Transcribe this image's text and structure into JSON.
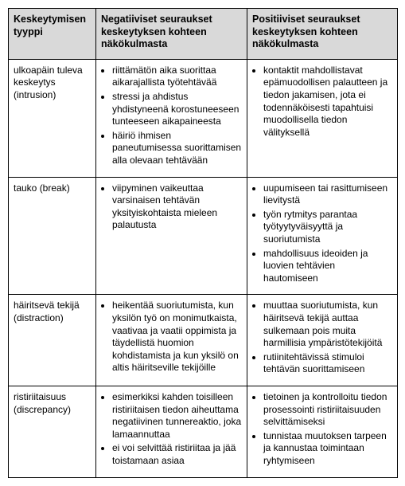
{
  "table": {
    "headers": {
      "col1": "Keskeytymisen tyyppi",
      "col2": "Negatiiviset seuraukset keskeytyksen kohteen näkökulmasta",
      "col3": "Positiiviset seuraukset keskeytyksen kohteen näkökulmasta"
    },
    "rows": [
      {
        "label": "ulkoapäin tuleva keskeytys (intrusion)",
        "neg": [
          "riittämätön aika suorittaa aikarajallista työtehtävää",
          "stressi ja ahdistus yhdistyneenä korostuneeseen tunteeseen aikapaineesta",
          "häiriö ihmisen paneutumisessa suorittamisen alla olevaan tehtävään"
        ],
        "pos": [
          "kontaktit mahdollistavat epämuodollisen palautteen ja tiedon jakamisen, jota ei todennäköisesti tapahtuisi muodollisella tiedon välityksellä"
        ]
      },
      {
        "label": "tauko (break)",
        "neg": [
          "viipyminen vaikeuttaa varsinaisen tehtävän yksityiskohtaista mieleen palautusta"
        ],
        "pos": [
          "uupumiseen tai rasittumiseen lievitystä",
          "työn rytmitys parantaa työtyytyväisyyttä ja suoriutumista",
          "mahdollisuus ideoiden ja luovien tehtävien hautomiseen"
        ]
      },
      {
        "label": "häiritsevä tekijä (distraction)",
        "neg": [
          "heikentää suoriutumista, kun yksilön työ on monimutkaista, vaativaa ja vaatii oppimista ja täydellistä huomion kohdistamista ja kun yksilö on altis häiritseville tekijöille"
        ],
        "pos": [
          "muuttaa suoriutumista, kun häiritsevä tekijä auttaa sulkemaan pois muita harmillisia ympäristötekijöitä",
          "rutiinitehtävissä stimuloi tehtävän suorittamiseen"
        ]
      },
      {
        "label": "ristiriitaisuus (discrepancy)",
        "neg": [
          "esimerkiksi kahden toisilleen ristiriitaisen tiedon aiheuttama negatiivinen tunnereaktio, joka lamaannuttaa",
          "ei voi selvittää ristiriitaa ja jää toistamaan asiaa"
        ],
        "pos": [
          "tietoinen ja kontrolloitu tiedon prosessointi ristiriitaisuuden selvittämiseksi",
          "tunnistaa muutoksen tarpeen ja kannustaa toimintaan ryhtymiseen"
        ]
      }
    ]
  }
}
